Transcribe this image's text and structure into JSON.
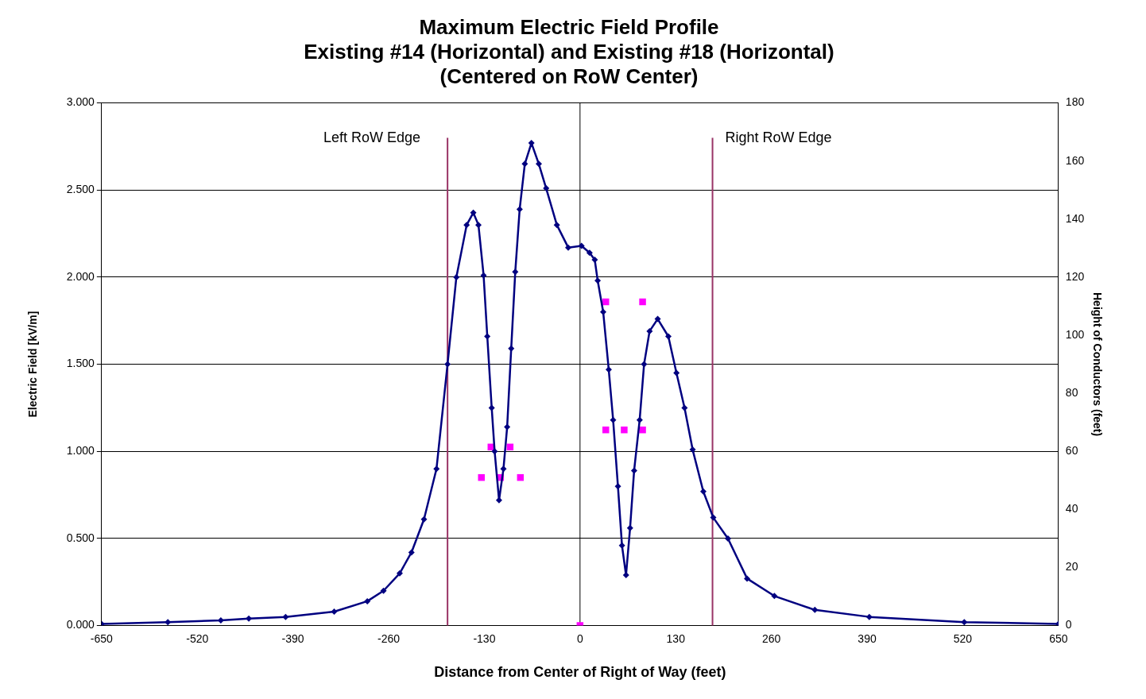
{
  "chart_data": {
    "type": "line",
    "title": "Maximum Electric Field Profile\nExisting #14 (Horizontal) and Existing #18 (Horizontal)\n(Centered on RoW Center)",
    "xlabel": "Distance from Center of Right of Way (feet)",
    "ylabel": "Electric Field [kV/m]",
    "y2label": "Height of Conductors (feet)",
    "xlim": [
      -650,
      650
    ],
    "xticks": [
      -650,
      -520,
      -390,
      -260,
      -130,
      0,
      130,
      260,
      390,
      520,
      650
    ],
    "ylim": [
      0,
      3
    ],
    "yticks": [
      {
        "value": 0,
        "label": "0.000"
      },
      {
        "value": 0.5,
        "label": "0.500"
      },
      {
        "value": 1,
        "label": "1.000"
      },
      {
        "value": 1.5,
        "label": "1.500"
      },
      {
        "value": 2,
        "label": "2.000"
      },
      {
        "value": 2.5,
        "label": "2.500"
      },
      {
        "value": 3,
        "label": "3.000"
      }
    ],
    "y2lim": [
      0,
      180
    ],
    "y2ticks": [
      0,
      20,
      40,
      60,
      80,
      100,
      120,
      140,
      160,
      180
    ],
    "grid": "y",
    "legend": false,
    "ref_lines": [
      {
        "axis": "x",
        "value": 0,
        "color": "#000000"
      },
      {
        "axis": "x",
        "value": -180,
        "label": "Left RoW Edge",
        "color": "#993366"
      },
      {
        "axis": "x",
        "value": 180,
        "label": "Right RoW Edge",
        "color": "#993366"
      }
    ],
    "series": [
      {
        "type": "line",
        "color": "#000080",
        "marker": "diamond",
        "line_style": "solid",
        "x": [
          -650,
          -560,
          -488,
          -450,
          -400,
          -334,
          -289,
          -267,
          -245,
          -229,
          -212,
          -195,
          -180,
          -168,
          -154,
          -145,
          -138,
          -131,
          -126,
          -120,
          -116,
          -110,
          -104,
          -99,
          -93.5,
          -88,
          -82,
          -75,
          -66,
          -56,
          -46,
          -31.5,
          -16,
          2,
          13,
          20,
          24,
          31.5,
          39,
          45,
          51.5,
          57,
          62.5,
          68,
          73.5,
          81,
          87,
          94.5,
          105.5,
          120,
          131,
          142,
          153,
          167.5,
          181,
          201,
          227,
          264,
          319,
          393,
          522,
          650
        ],
        "values": [
          0.01,
          0.02,
          0.03,
          0.04,
          0.05,
          0.08,
          0.14,
          0.2,
          0.3,
          0.42,
          0.61,
          0.9,
          1.5,
          2.0,
          2.3,
          2.37,
          2.3,
          2.01,
          1.66,
          1.25,
          1.0,
          0.72,
          0.9,
          1.14,
          1.59,
          2.03,
          2.39,
          2.65,
          2.77,
          2.65,
          2.51,
          2.3,
          2.17,
          2.18,
          2.14,
          2.1,
          1.98,
          1.8,
          1.47,
          1.18,
          0.8,
          0.46,
          0.29,
          0.56,
          0.89,
          1.18,
          1.5,
          1.69,
          1.76,
          1.66,
          1.45,
          1.25,
          1.01,
          0.77,
          0.62,
          0.5,
          0.27,
          0.17,
          0.09,
          0.05,
          0.02,
          0.01
        ]
      },
      {
        "type": "scatter",
        "axis": "y2",
        "color": "#ff00ff",
        "marker": "square",
        "x": [
          -134,
          -121,
          -108,
          -95,
          -81,
          0,
          35,
          85,
          35,
          60,
          85
        ],
        "values": [
          51,
          61.5,
          51,
          61.5,
          51,
          0,
          111.5,
          111.5,
          67.4,
          67.4,
          67.4
        ]
      }
    ]
  }
}
